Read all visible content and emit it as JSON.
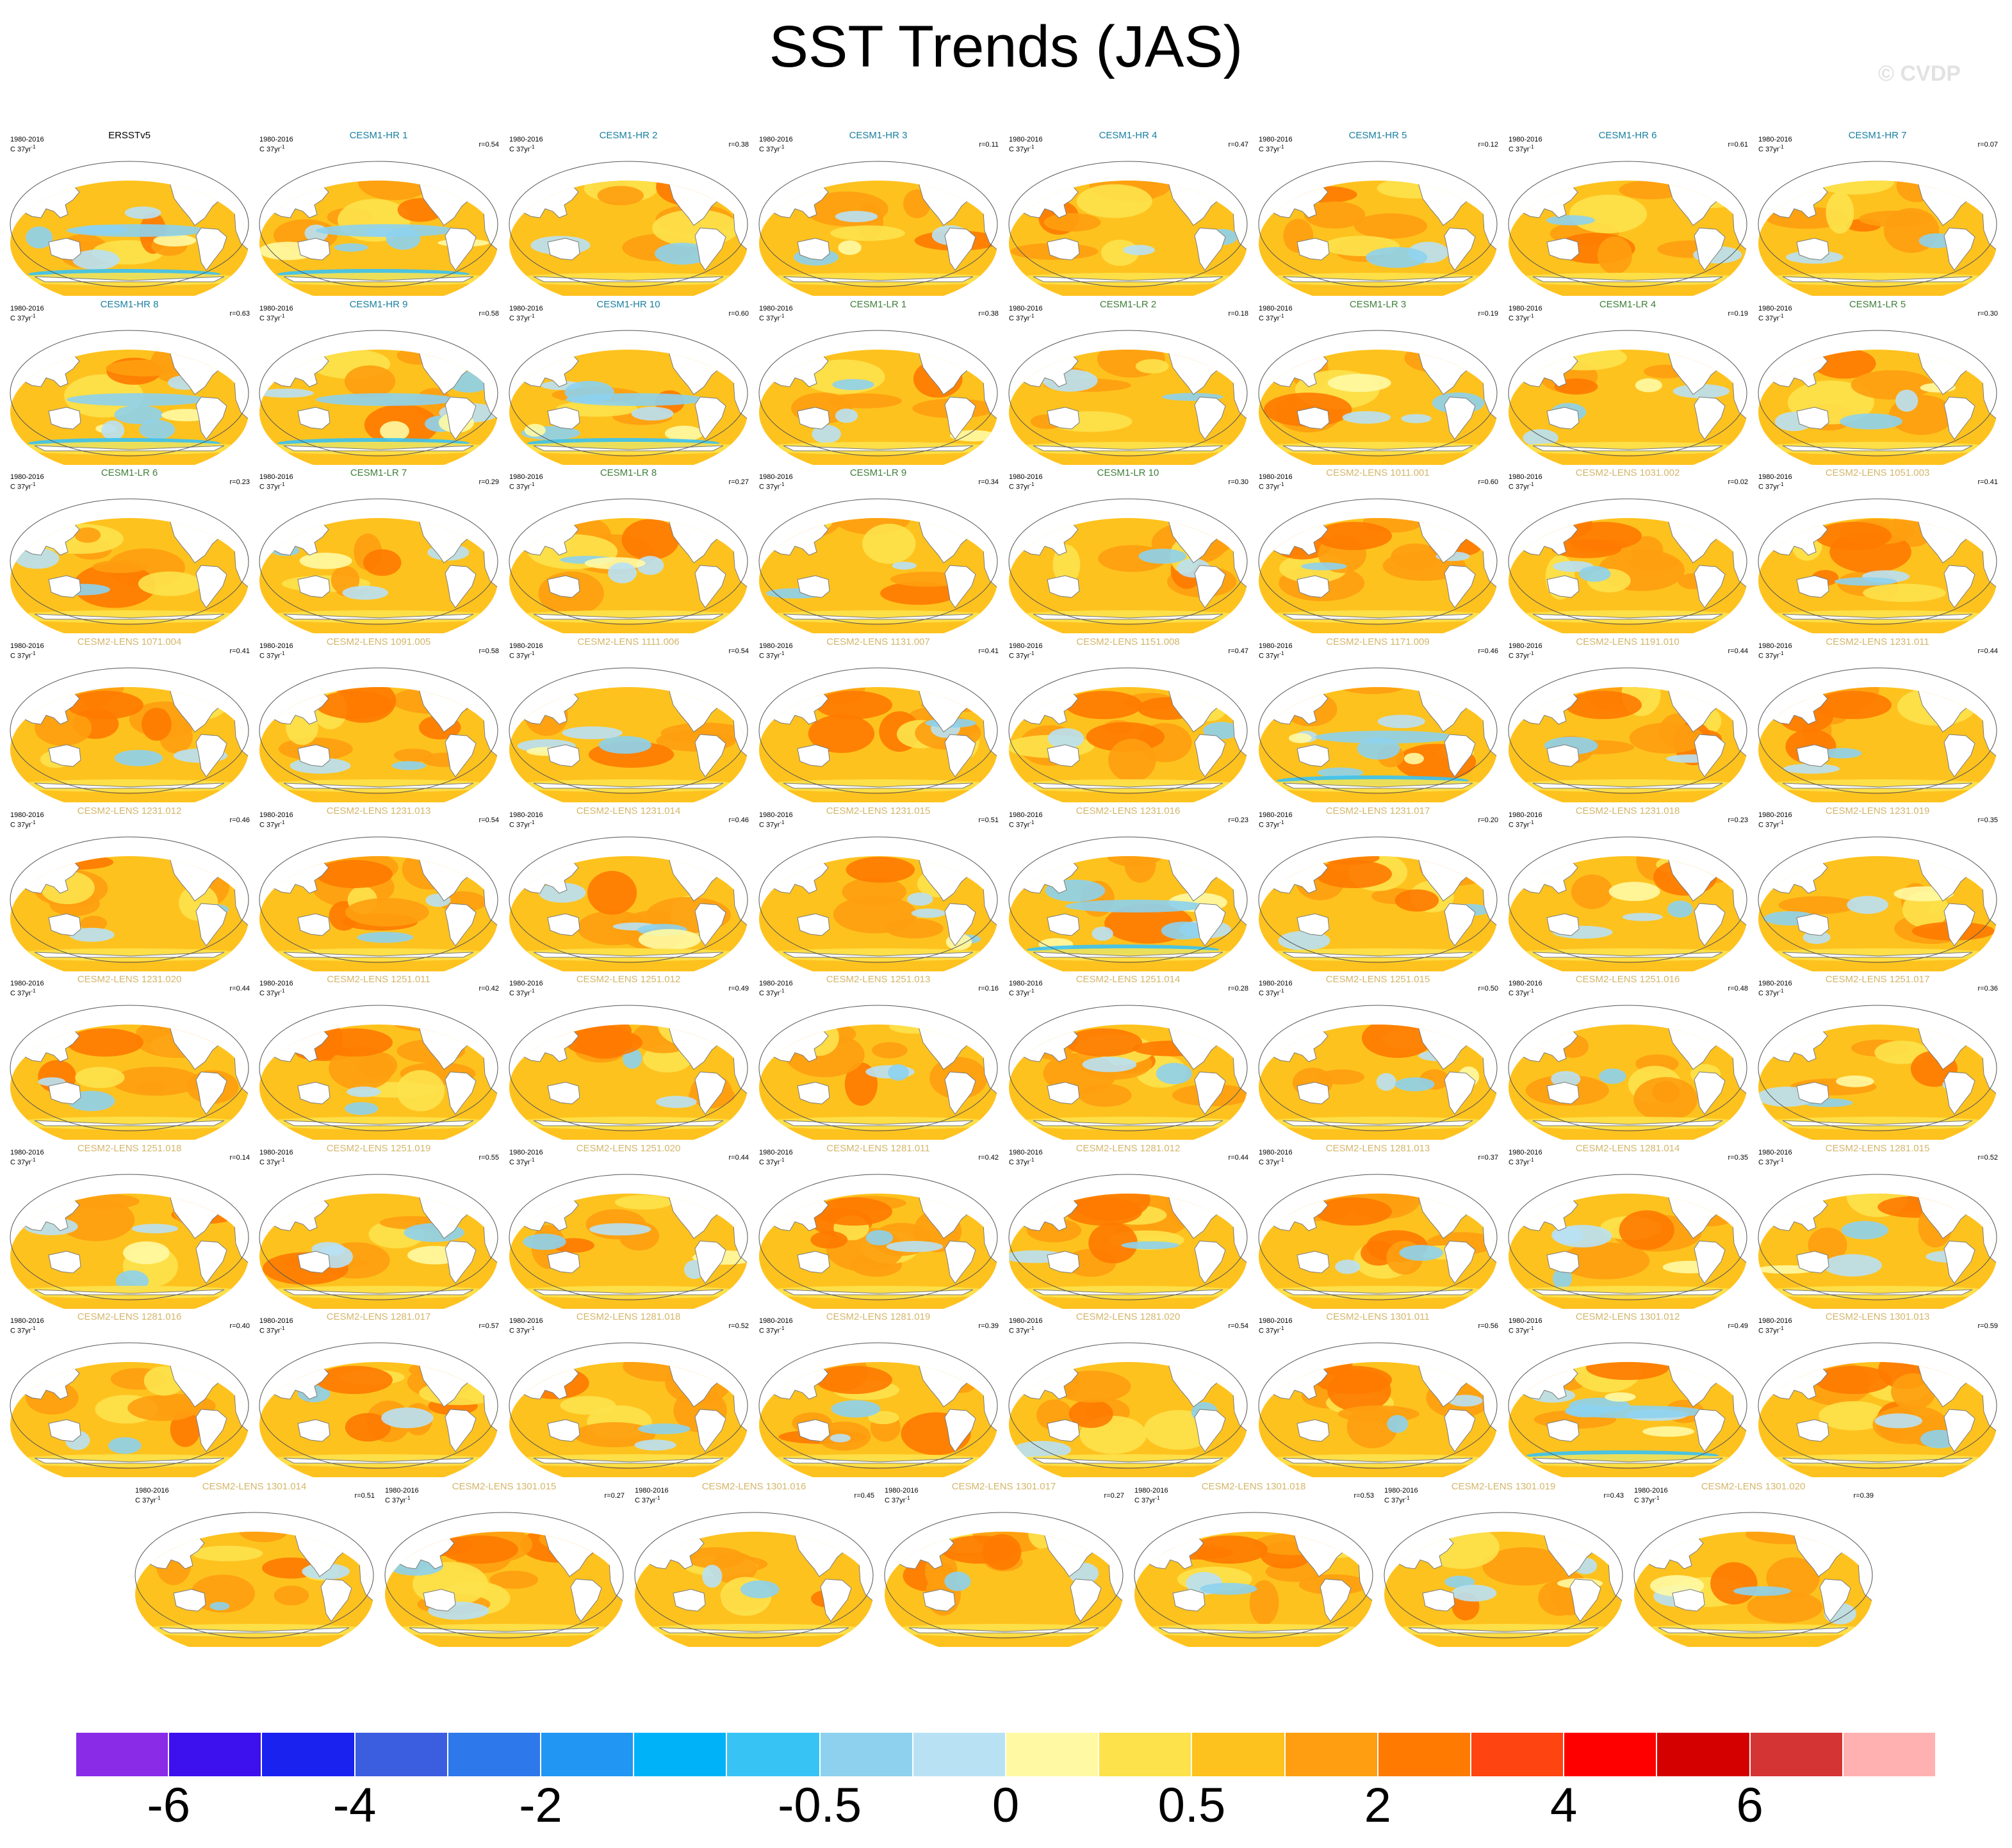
{
  "title": "SST Trends (JAS)",
  "watermark": "© CVDP",
  "period": "1980-2016",
  "units": "C 37yr",
  "units_sup": "-1",
  "colors": {
    "title_obs": "#000000",
    "title_hr": "#1a7fa0",
    "title_lr": "#3f7f3a",
    "title_lens": "#d4b66a"
  },
  "panels": [
    {
      "name": "ERSSTv5",
      "r": "",
      "group": "obs",
      "look": "obs"
    },
    {
      "name": "CESM1-HR 1",
      "r": "r=0.54",
      "group": "hr",
      "look": "coolband"
    },
    {
      "name": "CESM1-HR 2",
      "r": "r=0.38",
      "group": "hr",
      "look": "warm"
    },
    {
      "name": "CESM1-HR 3",
      "r": "r=0.11",
      "group": "hr",
      "look": "mixed"
    },
    {
      "name": "CESM1-HR 4",
      "r": "r=0.47",
      "group": "hr",
      "look": "warm"
    },
    {
      "name": "CESM1-HR 5",
      "r": "r=0.12",
      "group": "hr",
      "look": "warm"
    },
    {
      "name": "CESM1-HR 6",
      "r": "r=0.61",
      "group": "hr",
      "look": "warm"
    },
    {
      "name": "CESM1-HR 7",
      "r": "r=0.07",
      "group": "hr",
      "look": "warm"
    },
    {
      "name": "CESM1-HR 8",
      "r": "r=0.63",
      "group": "hr",
      "look": "coolband"
    },
    {
      "name": "CESM1-HR 9",
      "r": "r=0.58",
      "group": "hr",
      "look": "coolband"
    },
    {
      "name": "CESM1-HR 10",
      "r": "r=0.60",
      "group": "hr",
      "look": "coolband"
    },
    {
      "name": "CESM1-LR 1",
      "r": "r=0.38",
      "group": "lr",
      "look": "mixed"
    },
    {
      "name": "CESM1-LR 2",
      "r": "r=0.18",
      "group": "lr",
      "look": "warm"
    },
    {
      "name": "CESM1-LR 3",
      "r": "r=0.19",
      "group": "lr",
      "look": "mixed"
    },
    {
      "name": "CESM1-LR 4",
      "r": "r=0.19",
      "group": "lr",
      "look": "mixed"
    },
    {
      "name": "CESM1-LR 5",
      "r": "r=0.30",
      "group": "lr",
      "look": "mixed"
    },
    {
      "name": "CESM1-LR 6",
      "r": "r=0.23",
      "group": "lr",
      "look": "warm"
    },
    {
      "name": "CESM1-LR 7",
      "r": "r=0.29",
      "group": "lr",
      "look": "mixed"
    },
    {
      "name": "CESM1-LR 8",
      "r": "r=0.27",
      "group": "lr",
      "look": "mixed"
    },
    {
      "name": "CESM1-LR 9",
      "r": "r=0.34",
      "group": "lr",
      "look": "warm"
    },
    {
      "name": "CESM1-LR 10",
      "r": "r=0.30",
      "group": "lr",
      "look": "warm"
    },
    {
      "name": "CESM2-LENS 1011.001",
      "r": "r=0.60",
      "group": "lens",
      "look": "hot"
    },
    {
      "name": "CESM2-LENS 1031.002",
      "r": "r=0.02",
      "group": "lens",
      "look": "hot"
    },
    {
      "name": "CESM2-LENS 1051.003",
      "r": "r=0.41",
      "group": "lens",
      "look": "hot"
    },
    {
      "name": "CESM2-LENS 1071.004",
      "r": "r=0.41",
      "group": "lens",
      "look": "hot"
    },
    {
      "name": "CESM2-LENS 1091.005",
      "r": "r=0.58",
      "group": "lens",
      "look": "hot"
    },
    {
      "name": "CESM2-LENS 1111.006",
      "r": "r=0.54",
      "group": "lens",
      "look": "mixed"
    },
    {
      "name": "CESM2-LENS 1131.007",
      "r": "r=0.41",
      "group": "lens",
      "look": "hot"
    },
    {
      "name": "CESM2-LENS 1151.008",
      "r": "r=0.47",
      "group": "lens",
      "look": "hot"
    },
    {
      "name": "CESM2-LENS 1171.009",
      "r": "r=0.46",
      "group": "lens",
      "look": "coolband"
    },
    {
      "name": "CESM2-LENS 1191.010",
      "r": "r=0.44",
      "group": "lens",
      "look": "hot"
    },
    {
      "name": "CESM2-LENS 1231.011",
      "r": "r=0.44",
      "group": "lens",
      "look": "hot"
    },
    {
      "name": "CESM2-LENS 1231.012",
      "r": "r=0.46",
      "group": "lens",
      "look": "warm"
    },
    {
      "name": "CESM2-LENS 1231.013",
      "r": "r=0.54",
      "group": "lens",
      "look": "hot"
    },
    {
      "name": "CESM2-LENS 1231.014",
      "r": "r=0.46",
      "group": "lens",
      "look": "mixed"
    },
    {
      "name": "CESM2-LENS 1231.015",
      "r": "r=0.51",
      "group": "lens",
      "look": "mixed"
    },
    {
      "name": "CESM2-LENS 1231.016",
      "r": "r=0.23",
      "group": "lens",
      "look": "coolband"
    },
    {
      "name": "CESM2-LENS 1231.017",
      "r": "r=0.20",
      "group": "lens",
      "look": "hot"
    },
    {
      "name": "CESM2-LENS 1231.018",
      "r": "r=0.23",
      "group": "lens",
      "look": "mixed"
    },
    {
      "name": "CESM2-LENS 1231.019",
      "r": "r=0.35",
      "group": "lens",
      "look": "mixed"
    },
    {
      "name": "CESM2-LENS 1231.020",
      "r": "r=0.44",
      "group": "lens",
      "look": "hot"
    },
    {
      "name": "CESM2-LENS 1251.011",
      "r": "r=0.42",
      "group": "lens",
      "look": "hot"
    },
    {
      "name": "CESM2-LENS 1251.012",
      "r": "r=0.49",
      "group": "lens",
      "look": "hot"
    },
    {
      "name": "CESM2-LENS 1251.013",
      "r": "r=0.16",
      "group": "lens",
      "look": "warm"
    },
    {
      "name": "CESM2-LENS 1251.014",
      "r": "r=0.28",
      "group": "lens",
      "look": "hot"
    },
    {
      "name": "CESM2-LENS 1251.015",
      "r": "r=0.50",
      "group": "lens",
      "look": "mixed"
    },
    {
      "name": "CESM2-LENS 1251.016",
      "r": "r=0.48",
      "group": "lens",
      "look": "warm"
    },
    {
      "name": "CESM2-LENS 1251.017",
      "r": "r=0.36",
      "group": "lens",
      "look": "mixed"
    },
    {
      "name": "CESM2-LENS 1251.018",
      "r": "r=0.14",
      "group": "lens",
      "look": "mixed"
    },
    {
      "name": "CESM2-LENS 1251.019",
      "r": "r=0.55",
      "group": "lens",
      "look": "mixed"
    },
    {
      "name": "CESM2-LENS 1251.020",
      "r": "r=0.44",
      "group": "lens",
      "look": "mixed"
    },
    {
      "name": "CESM2-LENS 1281.011",
      "r": "r=0.42",
      "group": "lens",
      "look": "hot"
    },
    {
      "name": "CESM2-LENS 1281.012",
      "r": "r=0.44",
      "group": "lens",
      "look": "hot"
    },
    {
      "name": "CESM2-LENS 1281.013",
      "r": "r=0.37",
      "group": "lens",
      "look": "hot"
    },
    {
      "name": "CESM2-LENS 1281.014",
      "r": "r=0.35",
      "group": "lens",
      "look": "mixed"
    },
    {
      "name": "CESM2-LENS 1281.015",
      "r": "r=0.52",
      "group": "lens",
      "look": "mixed"
    },
    {
      "name": "CESM2-LENS 1281.016",
      "r": "r=0.40",
      "group": "lens",
      "look": "warm"
    },
    {
      "name": "CESM2-LENS 1281.017",
      "r": "r=0.57",
      "group": "lens",
      "look": "hot"
    },
    {
      "name": "CESM2-LENS 1281.018",
      "r": "r=0.52",
      "group": "lens",
      "look": "warm"
    },
    {
      "name": "CESM2-LENS 1281.019",
      "r": "r=0.39",
      "group": "lens",
      "look": "hot"
    },
    {
      "name": "CESM2-LENS 1281.020",
      "r": "r=0.54",
      "group": "lens",
      "look": "warm"
    },
    {
      "name": "CESM2-LENS 1301.011",
      "r": "r=0.56",
      "group": "lens",
      "look": "hot"
    },
    {
      "name": "CESM2-LENS 1301.012",
      "r": "r=0.49",
      "group": "lens",
      "look": "coolband"
    },
    {
      "name": "CESM2-LENS 1301.013",
      "r": "r=0.59",
      "group": "lens",
      "look": "hot"
    },
    {
      "name": "CESM2-LENS 1301.014",
      "r": "r=0.51",
      "group": "lens",
      "look": "warm"
    },
    {
      "name": "CESM2-LENS 1301.015",
      "r": "r=0.27",
      "group": "lens",
      "look": "hot"
    },
    {
      "name": "CESM2-LENS 1301.016",
      "r": "r=0.45",
      "group": "lens",
      "look": "warm"
    },
    {
      "name": "CESM2-LENS 1301.017",
      "r": "r=0.27",
      "group": "lens",
      "look": "hot"
    },
    {
      "name": "CESM2-LENS 1301.018",
      "r": "r=0.53",
      "group": "lens",
      "look": "hot"
    },
    {
      "name": "CESM2-LENS 1301.019",
      "r": "r=0.43",
      "group": "lens",
      "look": "mixed"
    },
    {
      "name": "CESM2-LENS 1301.020",
      "r": "r=0.39",
      "group": "lens",
      "look": "mixed"
    }
  ],
  "colorbar": {
    "colors": [
      "#8a2be8",
      "#3d10ee",
      "#1a22f0",
      "#3b5de0",
      "#2d78ea",
      "#2196f3",
      "#00b2f8",
      "#38c3f5",
      "#8dd1ee",
      "#b9e1f4",
      "#fff9a3",
      "#fde24b",
      "#fec21e",
      "#fe9e10",
      "#fe7a00",
      "#fe4410",
      "#fe0000",
      "#d40000",
      "#d53434",
      "#ffb1b1"
    ],
    "labels": [
      {
        "text": "-6",
        "boundary": 1
      },
      {
        "text": "-4",
        "boundary": 3
      },
      {
        "text": "-2",
        "boundary": 5
      },
      {
        "text": "-0.5",
        "boundary": 8
      },
      {
        "text": "0",
        "boundary": 10
      },
      {
        "text": "0.5",
        "boundary": 12
      },
      {
        "text": "2",
        "boundary": 14
      },
      {
        "text": "4",
        "boundary": 16
      },
      {
        "text": "6",
        "boundary": 18
      }
    ]
  }
}
